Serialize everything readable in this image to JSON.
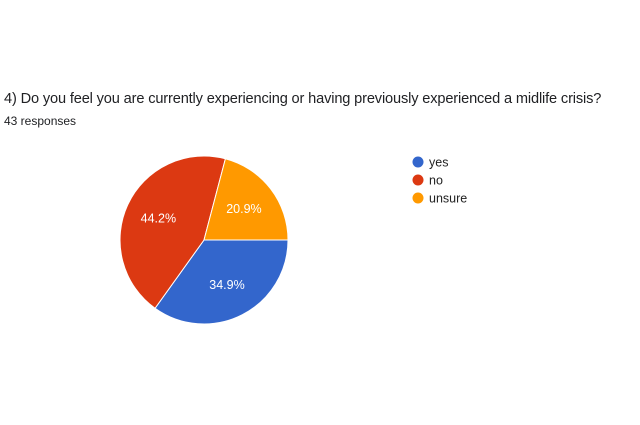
{
  "question_title": "4) Do you feel you are currently experiencing or having previously experienced a midlife crisis?",
  "responses": "43 responses",
  "chart_data": {
    "type": "pie",
    "title": "4) Do you feel you are currently experiencing or having previously experienced a midlife crisis?",
    "subtitle": "43 responses",
    "categories": [
      "yes",
      "no",
      "unsure"
    ],
    "values": [
      34.9,
      44.2,
      20.9
    ],
    "labels": [
      "34.9%",
      "44.2%",
      "20.9%"
    ],
    "colors": [
      "#3366cc",
      "#dc3912",
      "#ff9900"
    ],
    "legend_placement": "right"
  }
}
